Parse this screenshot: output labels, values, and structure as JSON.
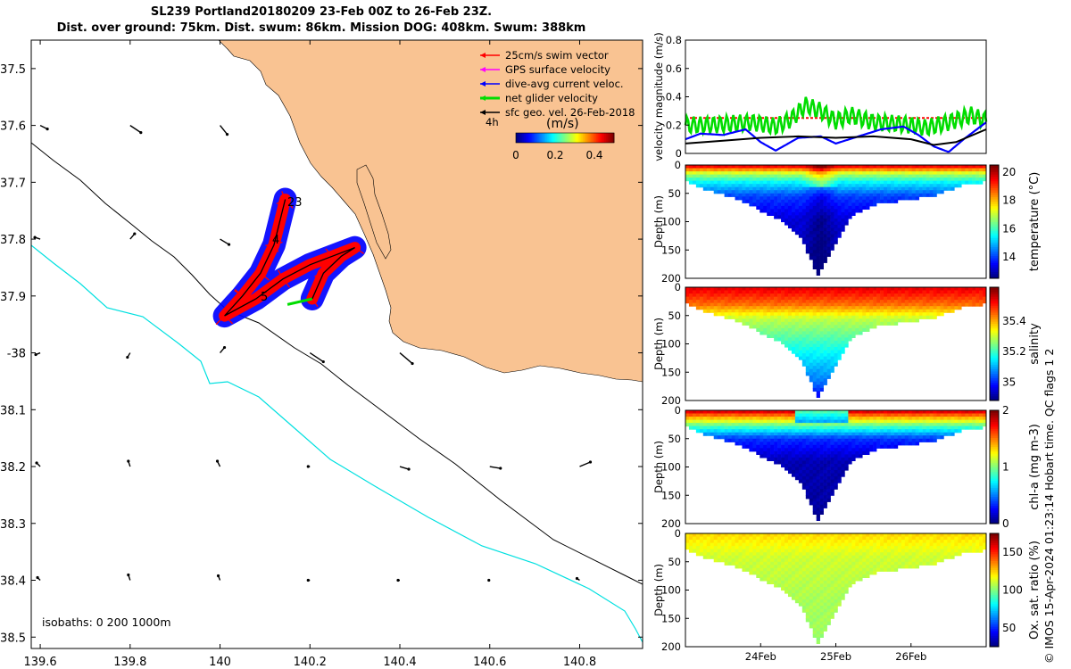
{
  "header": {
    "line1": "SL239 Portland20180209 23-Feb 00Z to 26-Feb 23Z.",
    "line2": "Dist. over ground: 75km. Dist. swum: 86km. Mission DOG: 408km. Swum: 388km"
  },
  "footer": "© IMOS 15-Apr-2024 01:23:14 Hobart time. QC flags 1  2",
  "colors": {
    "land": "#F9C392",
    "iso0": "#000000",
    "iso1000": "#00E0E0",
    "swim": "#FF0000",
    "gps": "#FF00FF",
    "dive": "#0000FF",
    "net": "#00DD00",
    "geo": "#000000"
  },
  "chart_data": [
    {
      "type": "map",
      "xlim": [
        139.58,
        140.94
      ],
      "ylim": [
        -38.52,
        -37.45
      ],
      "x_ticks": [
        139.6,
        139.8,
        140,
        140.2,
        140.4,
        140.6,
        140.8
      ],
      "x_tick_labels": [
        "139.6",
        "139.8",
        "140",
        "140.2",
        "140.4",
        "140.6",
        "140.8"
      ],
      "y_ticks": [
        -37.5,
        -37.6,
        -37.7,
        -37.8,
        -37.9,
        -38,
        -38.1,
        -38.2,
        -38.3,
        -38.4,
        -38.5
      ],
      "y_tick_labels": [
        "37.5",
        "37.6",
        "37.7",
        "37.8",
        "37.9",
        "-38",
        "38.1",
        "38.2",
        "38.3",
        "38.4",
        "38.5"
      ],
      "legend": [
        {
          "label": "25cm/s swim vector",
          "color": "#FF0000"
        },
        {
          "label": "GPS surface velocity",
          "color": "#FF00FF"
        },
        {
          "label": "dive-avg current veloc.",
          "color": "#0000FF"
        },
        {
          "label": "net glider velocity",
          "color": "#00DD00"
        },
        {
          "label": "sfc geo. vel. 26-Feb-2018",
          "color": "#000000"
        }
      ],
      "legend_position": "top-right",
      "scale_label": "4h",
      "colorbar": {
        "label": "(m/s)",
        "ticks": [
          "0",
          "0.2",
          "0.4"
        ],
        "range": [
          0,
          0.5
        ]
      },
      "isobath_label": "isobaths: 0   200  1000m",
      "track_labels": [
        "23",
        "4",
        "5"
      ],
      "track_points": [
        [
          140.01,
          -37.935
        ],
        [
          140.05,
          -37.9
        ],
        [
          140.09,
          -37.86
        ],
        [
          140.12,
          -37.81
        ],
        [
          140.145,
          -37.73
        ],
        [
          140.12,
          -37.81
        ],
        [
          140.09,
          -37.86
        ],
        [
          140.05,
          -37.9
        ],
        [
          140.01,
          -37.935
        ],
        [
          140.08,
          -37.905
        ],
        [
          140.14,
          -37.87
        ],
        [
          140.2,
          -37.845
        ],
        [
          140.25,
          -37.83
        ],
        [
          140.3,
          -37.815
        ],
        [
          140.27,
          -37.83
        ],
        [
          140.23,
          -37.86
        ],
        [
          140.205,
          -37.905
        ]
      ]
    },
    {
      "type": "line",
      "ylabel": "velocity magnitude (m/s)",
      "ylim": [
        0,
        0.8
      ],
      "y_ticks": [
        "0",
        "0.2",
        "0.4",
        "0.6",
        "0.8"
      ],
      "x_domain": [
        23.0,
        27.0
      ],
      "series": [
        {
          "color": "#FF0000",
          "style": "dashed",
          "x": [
            23.0,
            27.0
          ],
          "values": [
            0.25,
            0.25
          ]
        },
        {
          "color": "#00DD00",
          "x": [
            23.0,
            23.3,
            23.6,
            23.9,
            24.2,
            24.4,
            24.6,
            24.8,
            25.0,
            25.2,
            25.5,
            25.8,
            26.0,
            26.2,
            26.5,
            26.8,
            27.0
          ],
          "values": [
            0.2,
            0.2,
            0.21,
            0.22,
            0.19,
            0.24,
            0.34,
            0.3,
            0.23,
            0.27,
            0.22,
            0.21,
            0.2,
            0.18,
            0.22,
            0.27,
            0.23
          ]
        },
        {
          "color": "#0000FF",
          "x": [
            23.0,
            23.2,
            23.5,
            23.8,
            24.0,
            24.2,
            24.5,
            24.8,
            25.0,
            25.3,
            25.6,
            25.9,
            26.1,
            26.3,
            26.5,
            26.7,
            27.0
          ],
          "values": [
            0.1,
            0.14,
            0.13,
            0.17,
            0.08,
            0.02,
            0.11,
            0.12,
            0.07,
            0.12,
            0.17,
            0.19,
            0.13,
            0.05,
            0.01,
            0.1,
            0.22
          ]
        },
        {
          "color": "#000000",
          "x": [
            23.0,
            23.5,
            24.0,
            24.5,
            25.0,
            25.5,
            26.0,
            26.3,
            26.6,
            27.0
          ],
          "values": [
            0.07,
            0.09,
            0.11,
            0.12,
            0.11,
            0.12,
            0.1,
            0.06,
            0.08,
            0.17
          ]
        }
      ]
    },
    {
      "type": "heatmap",
      "ylabel": "Depth (m)",
      "yreverse": true,
      "ylim": [
        0,
        200
      ],
      "y_ticks": [
        "0",
        "50",
        "100",
        "150",
        "200"
      ],
      "colorbar_label": "temperature (°C)",
      "colorbar_range": [
        12.5,
        20.5
      ],
      "colorbar_ticks": [
        "14",
        "16",
        "18",
        "20"
      ],
      "max_depth": [
        [
          23.0,
          28
        ],
        [
          23.2,
          40
        ],
        [
          23.6,
          55
        ],
        [
          24.0,
          80
        ],
        [
          24.3,
          100
        ],
        [
          24.55,
          130
        ],
        [
          24.75,
          195
        ],
        [
          24.95,
          150
        ],
        [
          25.2,
          90
        ],
        [
          25.5,
          70
        ],
        [
          25.9,
          62
        ],
        [
          26.3,
          55
        ],
        [
          26.7,
          35
        ],
        [
          27.0,
          30
        ]
      ],
      "bands": [
        [
          0,
          20.0
        ],
        [
          15,
          17.0
        ],
        [
          30,
          15.5
        ],
        [
          55,
          14.0
        ],
        [
          95,
          13.2
        ],
        [
          200,
          12.8
        ]
      ]
    },
    {
      "type": "heatmap",
      "ylabel": "Depth (m)",
      "yreverse": true,
      "ylim": [
        0,
        200
      ],
      "y_ticks": [
        "0",
        "50",
        "100",
        "150",
        "200"
      ],
      "colorbar_label": "salinity",
      "colorbar_range": [
        34.88,
        35.62
      ],
      "colorbar_ticks": [
        "35",
        "35.2",
        "35.4"
      ],
      "max_depth": [
        [
          23.0,
          28
        ],
        [
          23.2,
          40
        ],
        [
          23.6,
          55
        ],
        [
          24.0,
          80
        ],
        [
          24.3,
          100
        ],
        [
          24.55,
          130
        ],
        [
          24.75,
          195
        ],
        [
          24.95,
          150
        ],
        [
          25.2,
          90
        ],
        [
          25.5,
          70
        ],
        [
          25.9,
          62
        ],
        [
          26.3,
          55
        ],
        [
          26.7,
          35
        ],
        [
          27.0,
          30
        ]
      ],
      "bands": [
        [
          0,
          35.55
        ],
        [
          30,
          35.45
        ],
        [
          55,
          35.3
        ],
        [
          110,
          35.17
        ],
        [
          170,
          35.05
        ],
        [
          200,
          34.95
        ]
      ]
    },
    {
      "type": "heatmap",
      "ylabel": "Depth (m)",
      "yreverse": true,
      "ylim": [
        0,
        200
      ],
      "y_ticks": [
        "0",
        "50",
        "100",
        "150",
        "200"
      ],
      "colorbar_label": "chl-a (mg m-3)",
      "colorbar_range": [
        0,
        2
      ],
      "colorbar_ticks": [
        "0",
        "1",
        "2"
      ],
      "max_depth": [
        [
          23.0,
          28
        ],
        [
          23.2,
          40
        ],
        [
          23.6,
          55
        ],
        [
          24.0,
          80
        ],
        [
          24.3,
          100
        ],
        [
          24.55,
          130
        ],
        [
          24.75,
          195
        ],
        [
          24.95,
          150
        ],
        [
          25.2,
          90
        ],
        [
          25.5,
          70
        ],
        [
          25.9,
          62
        ],
        [
          26.3,
          55
        ],
        [
          26.7,
          35
        ],
        [
          27.0,
          30
        ]
      ],
      "bands": [
        [
          0,
          1.9
        ],
        [
          10,
          1.5
        ],
        [
          28,
          0.9
        ],
        [
          50,
          0.35
        ],
        [
          90,
          0.1
        ],
        [
          200,
          0.05
        ]
      ]
    },
    {
      "type": "heatmap",
      "ylabel": "Depth (m)",
      "yreverse": true,
      "ylim": [
        0,
        200
      ],
      "y_ticks": [
        "0",
        "50",
        "100",
        "150",
        "200"
      ],
      "xlabel_ticks": [
        "24Feb",
        "25Feb",
        "26Feb"
      ],
      "x_tick_values": [
        24,
        25,
        26
      ],
      "colorbar_label": "Ox. sat. ratio (%)",
      "colorbar_range": [
        25,
        175
      ],
      "colorbar_ticks": [
        "50",
        "100",
        "150"
      ],
      "max_depth": [
        [
          23.0,
          28
        ],
        [
          23.2,
          40
        ],
        [
          23.6,
          55
        ],
        [
          24.0,
          80
        ],
        [
          24.3,
          100
        ],
        [
          24.55,
          130
        ],
        [
          24.75,
          195
        ],
        [
          24.95,
          150
        ],
        [
          25.2,
          90
        ],
        [
          25.5,
          70
        ],
        [
          25.9,
          62
        ],
        [
          26.3,
          55
        ],
        [
          26.7,
          35
        ],
        [
          27.0,
          30
        ]
      ],
      "bands": [
        [
          0,
          125
        ],
        [
          40,
          112
        ],
        [
          120,
          106
        ],
        [
          200,
          104
        ]
      ]
    }
  ]
}
